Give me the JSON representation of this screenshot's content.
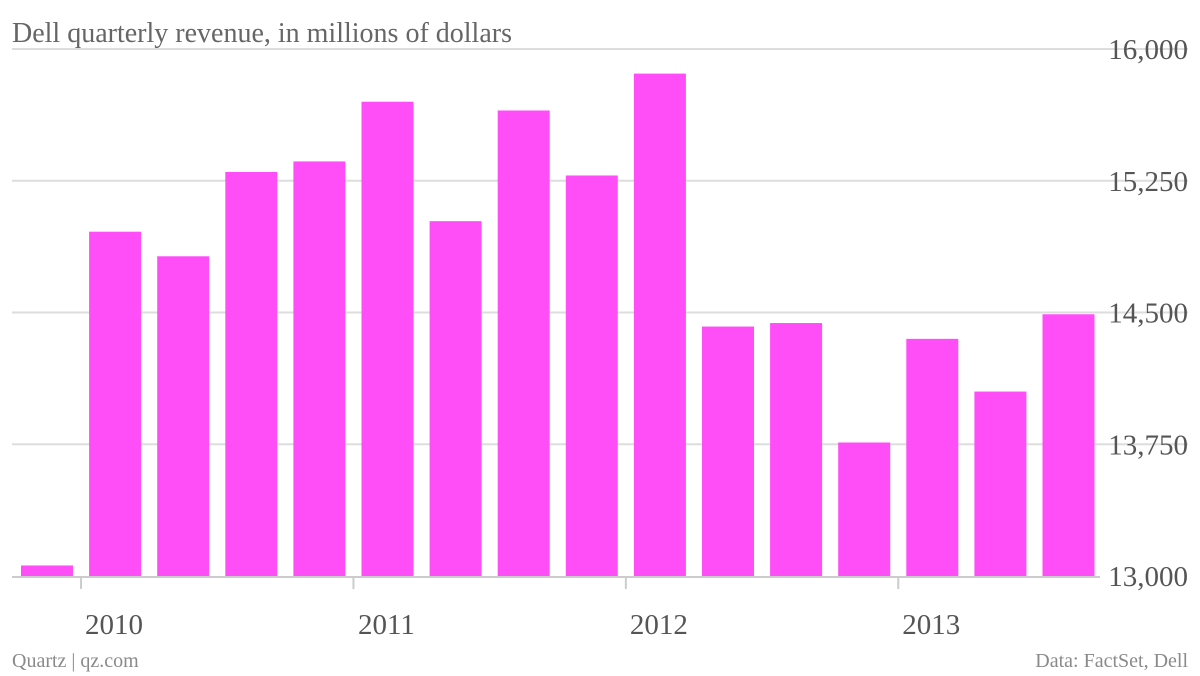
{
  "chart_data": {
    "type": "bar",
    "title": "Dell quarterly revenue, in millions of dollars",
    "ylim": [
      13000,
      16000
    ],
    "y_ticks": [
      "16,000",
      "15,250",
      "14,500",
      "13,750",
      "13,000"
    ],
    "y_tick_values": [
      16000,
      15250,
      14500,
      13750,
      13000
    ],
    "y_axis_side": "right",
    "grid": true,
    "x_labels": [
      {
        "label": "2010",
        "after_index": 0
      },
      {
        "label": "2011",
        "after_index": 4
      },
      {
        "label": "2012",
        "after_index": 8
      },
      {
        "label": "2013",
        "after_index": 12
      }
    ],
    "series": [
      {
        "color": "#ff4ef7",
        "values": [
          13060,
          14960,
          14820,
          15300,
          15360,
          15700,
          15020,
          15650,
          15280,
          15860,
          14420,
          14440,
          13760,
          14350,
          14050,
          14490
        ]
      }
    ]
  },
  "footer": {
    "source_left": "Quartz | qz.com",
    "source_right": "Data: FactSet, Dell"
  }
}
